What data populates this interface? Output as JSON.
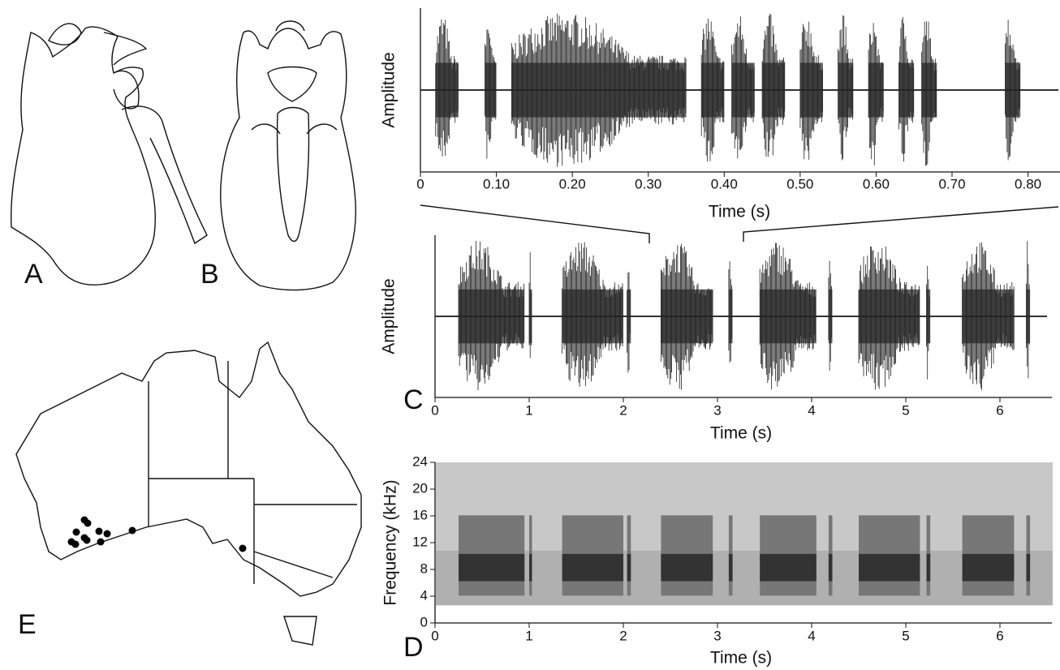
{
  "panels": [
    "A",
    "B",
    "E"
  ],
  "chart_data": [
    {
      "type": "waveform",
      "ylabel": "Amplitude",
      "xlabel": "Time (s)",
      "xlim": [
        0,
        0.84
      ],
      "xticks": [
        0,
        {
          "value": 0.1,
          "label": "0.10"
        },
        {
          "value": 0.2,
          "label": "0.20"
        },
        {
          "value": 0.3,
          "label": "0.30"
        },
        {
          "value": 0.4,
          "label": "0.40"
        },
        {
          "value": 0.5,
          "label": "0.50"
        },
        {
          "value": 0.6,
          "label": "0.60"
        },
        {
          "value": 0.7,
          "label": "0.70"
        },
        {
          "value": 0.8,
          "label": "0.80"
        }
      ],
      "bursts": [
        [
          0.02,
          0.05
        ],
        [
          0.085,
          0.1
        ],
        [
          0.12,
          0.35
        ],
        [
          0.37,
          0.4
        ],
        [
          0.41,
          0.44
        ],
        [
          0.45,
          0.48
        ],
        [
          0.5,
          0.53
        ],
        [
          0.55,
          0.57
        ],
        [
          0.59,
          0.61
        ],
        [
          0.63,
          0.65
        ],
        [
          0.66,
          0.68
        ],
        [
          0.77,
          0.79
        ]
      ]
    },
    {
      "type": "waveform",
      "panel": "C",
      "ylabel": "Amplitude",
      "xlabel": "Time (s)",
      "xlim": [
        0,
        6.5
      ],
      "xticks": [
        0,
        1,
        2,
        3,
        4,
        5,
        6
      ],
      "bursts": [
        [
          0.25,
          0.95
        ],
        [
          1.0,
          1.03
        ],
        [
          1.35,
          2.0
        ],
        [
          2.04,
          2.08
        ],
        [
          2.4,
          2.95
        ],
        [
          3.12,
          3.16
        ],
        [
          3.45,
          4.05
        ],
        [
          4.18,
          4.22
        ],
        [
          4.5,
          5.15
        ],
        [
          5.22,
          5.26
        ],
        [
          5.6,
          6.15
        ],
        [
          6.28,
          6.32
        ]
      ]
    },
    {
      "type": "spectrogram",
      "panel": "D",
      "ylabel": "Frequency (kHz)",
      "xlabel": "Time (s)",
      "xlim": [
        0,
        6.5
      ],
      "ylim": [
        0,
        24
      ],
      "xticks": [
        0,
        1,
        2,
        3,
        4,
        5,
        6
      ],
      "yticks": [
        0,
        4,
        8,
        12,
        16,
        20,
        24
      ],
      "bursts": [
        [
          0.25,
          0.95
        ],
        [
          1.0,
          1.03
        ],
        [
          1.35,
          2.0
        ],
        [
          2.04,
          2.08
        ],
        [
          2.4,
          2.95
        ],
        [
          3.12,
          3.16
        ],
        [
          3.45,
          4.05
        ],
        [
          4.18,
          4.22
        ],
        [
          4.5,
          5.15
        ],
        [
          5.22,
          5.26
        ],
        [
          5.6,
          6.15
        ],
        [
          6.28,
          6.32
        ]
      ]
    }
  ]
}
